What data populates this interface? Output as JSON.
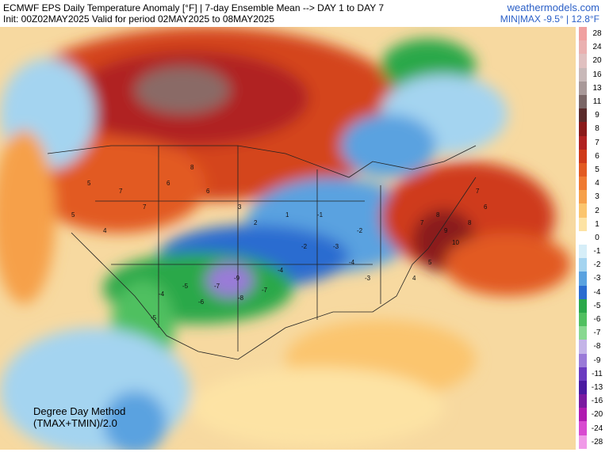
{
  "header": {
    "title_line1": "ECMWF EPS Daily Temperature Anomaly [°F] | 7-day Ensemble Mean --> DAY 1 to DAY 7",
    "title_line2": "Init: 00Z02MAY2025 Valid for period 02MAY2025 to 08MAY2025",
    "brand": "weathermodels.com",
    "minmax": "MIN|MAX -9.5° | 12.8°F"
  },
  "method": {
    "line1": "Degree Day Method",
    "line2": "(TMAX+TMIN)/2.0"
  },
  "legend": [
    {
      "label": "28",
      "color": "#f0a0a0"
    },
    {
      "label": "24",
      "color": "#eab0b0"
    },
    {
      "label": "20",
      "color": "#e0c0c0"
    },
    {
      "label": "16",
      "color": "#c8b8b8"
    },
    {
      "label": "13",
      "color": "#a89898"
    },
    {
      "label": "11",
      "color": "#7a6666"
    },
    {
      "label": "9",
      "color": "#5a2a2a"
    },
    {
      "label": "8",
      "color": "#8a1a1a"
    },
    {
      "label": "7",
      "color": "#b02222"
    },
    {
      "label": "6",
      "color": "#cf3a1a"
    },
    {
      "label": "5",
      "color": "#e25a22"
    },
    {
      "label": "4",
      "color": "#ef7a32"
    },
    {
      "label": "3",
      "color": "#f6a04a"
    },
    {
      "label": "2",
      "color": "#fbc56e"
    },
    {
      "label": "1",
      "color": "#fde3a4"
    },
    {
      "label": "0",
      "color": "#ffffff"
    },
    {
      "label": "-1",
      "color": "#d6eef8"
    },
    {
      "label": "-2",
      "color": "#a4d4f0"
    },
    {
      "label": "-3",
      "color": "#5aa2e0"
    },
    {
      "label": "-4",
      "color": "#2a6cd0"
    },
    {
      "label": "-5",
      "color": "#2aa84a"
    },
    {
      "label": "-6",
      "color": "#50c060"
    },
    {
      "label": "-7",
      "color": "#88d890"
    },
    {
      "label": "-8",
      "color": "#c4b4e8"
    },
    {
      "label": "-9",
      "color": "#9a7ad8"
    },
    {
      "label": "-11",
      "color": "#6a3ac0"
    },
    {
      "label": "-13",
      "color": "#4a1aa0"
    },
    {
      "label": "-16",
      "color": "#7a1aa0"
    },
    {
      "label": "-20",
      "color": "#b01ab0"
    },
    {
      "label": "-24",
      "color": "#d84ad0"
    },
    {
      "label": "-28",
      "color": "#f09ae8"
    }
  ],
  "map_labels": {
    "west_warm": [
      "5",
      "7",
      "8",
      "6",
      "7",
      "6",
      "5",
      "3",
      "2",
      "4",
      "1"
    ],
    "southwest_cool": [
      "-4",
      "-5",
      "-7",
      "-9",
      "-8",
      "-7",
      "-6",
      "-5",
      "-4"
    ],
    "midwest_cool": [
      "-1",
      "-2",
      "-3",
      "-4",
      "-3",
      "-2"
    ],
    "northeast_warm": [
      "7",
      "8",
      "9",
      "10",
      "8",
      "6",
      "7",
      "5",
      "4"
    ]
  }
}
